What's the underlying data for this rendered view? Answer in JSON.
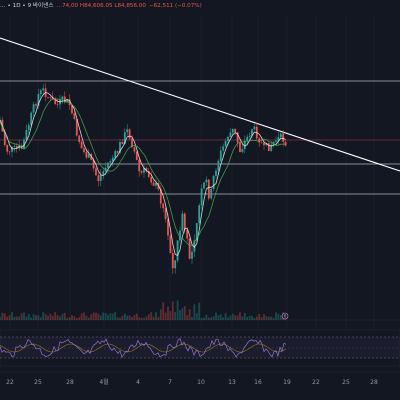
{
  "header": {
    "title": "… ∙ 1D ∙ 9 바이낸스",
    "ohlc": "…74,00 H84,606.05 L84,856.00",
    "change": "−62,511 (−0.07%)"
  },
  "colors": {
    "background": "#131722",
    "up": "#26a69a",
    "down": "#ef5350",
    "trendline": "#ffffff",
    "ma_fast": "#f5f5f5",
    "ma_slow": "#4caf50",
    "rsi": "#7e57c2"
  },
  "timeline": {
    "labels": [
      "22",
      "25",
      "28",
      "4월",
      "4",
      "7",
      "10",
      "13",
      "16",
      "19",
      "22",
      "25",
      "28"
    ]
  },
  "volume_badge": "6",
  "chart_data": {
    "type": "candlestick",
    "x": "days",
    "annotations": [
      "trendline",
      "horizontal levels"
    ],
    "indicators": [
      "moving averages",
      "volume",
      "RSI"
    ]
  }
}
